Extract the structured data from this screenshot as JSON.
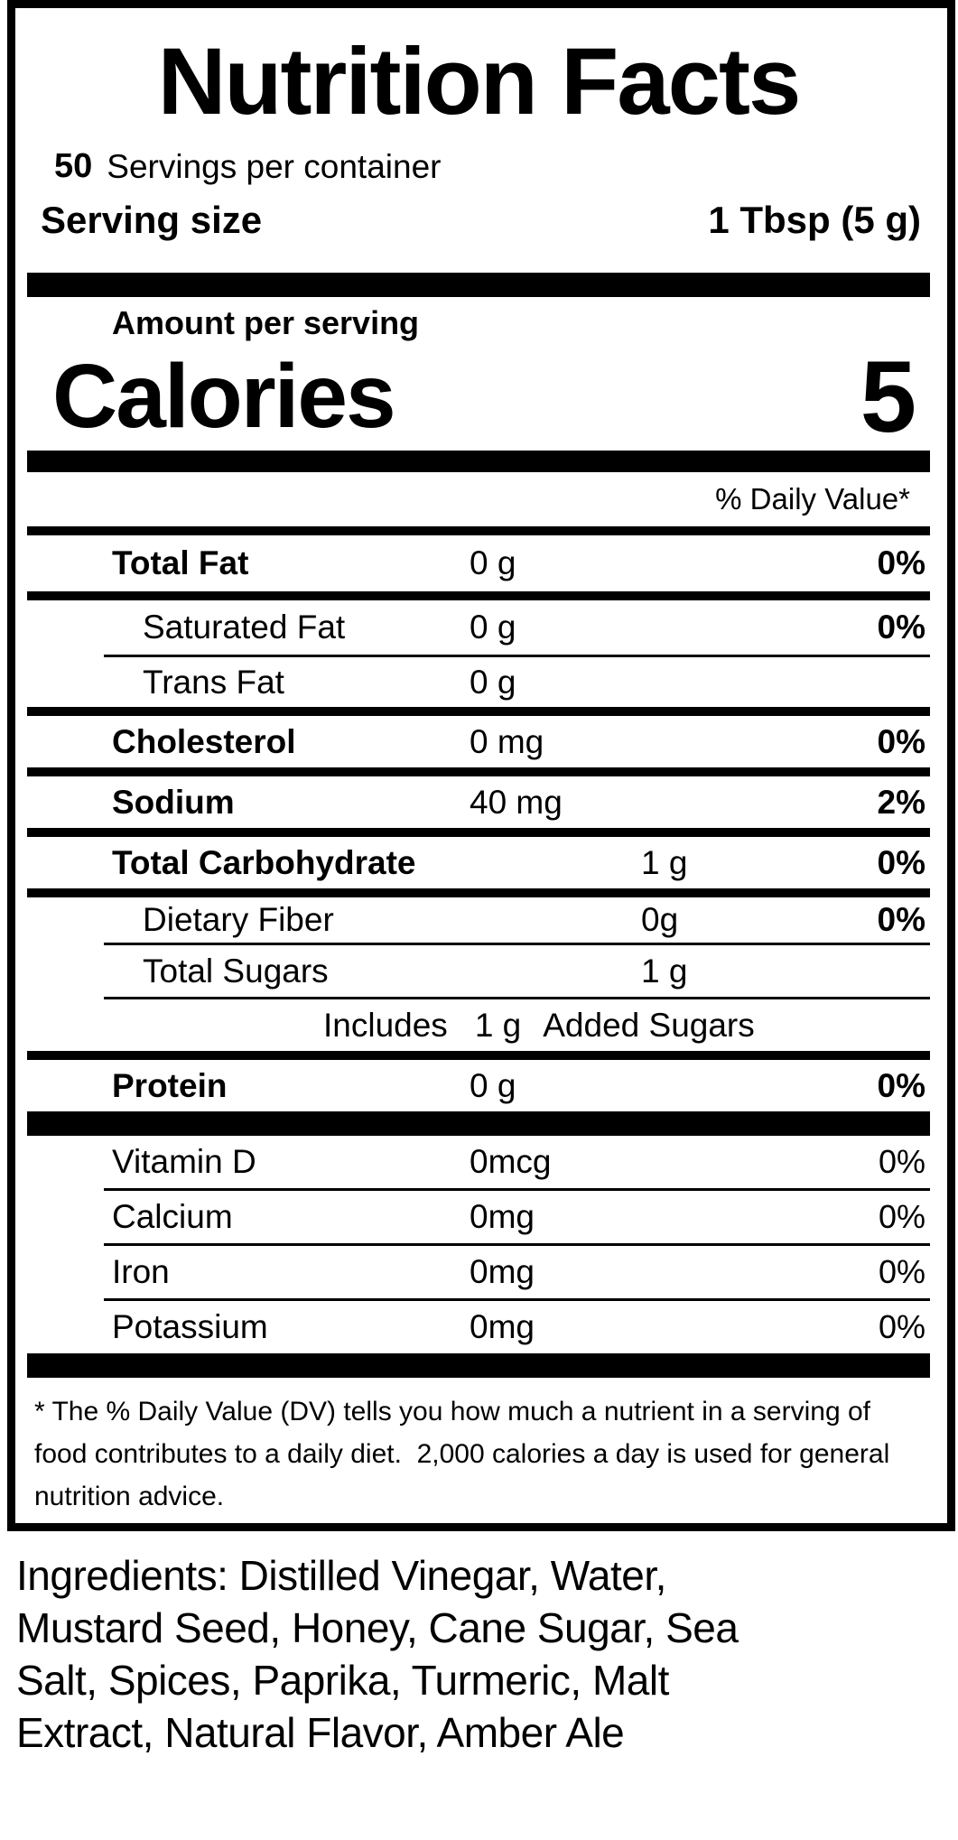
{
  "colors": {
    "text": "#000000",
    "background": "#ffffff"
  },
  "label": {
    "title": "Nutrition Facts",
    "servings": {
      "count": "50",
      "text": "Servings per container"
    },
    "serving_size": {
      "label": "Serving size",
      "value": "1 Tbsp (5 g)"
    },
    "amount_per_serving": "Amount per serving",
    "calories": {
      "label": "Calories",
      "value": "5"
    },
    "daily_value_header": "% Daily Value*",
    "rows": {
      "total_fat": {
        "name": "Total Fat",
        "amount": "0 g",
        "dv": "0%"
      },
      "saturated_fat": {
        "name": "Saturated Fat",
        "amount": "0 g",
        "dv": "0%"
      },
      "trans_fat": {
        "name": "Trans Fat",
        "amount": "0 g",
        "dv": ""
      },
      "cholesterol": {
        "name": "Cholesterol",
        "amount": "0 mg",
        "dv": "0%"
      },
      "sodium": {
        "name": "Sodium",
        "amount": "40 mg",
        "dv": "2%"
      },
      "total_carbohydrate": {
        "name": "Total Carbohydrate",
        "amount": "1 g",
        "dv": "0%"
      },
      "dietary_fiber": {
        "name": "Dietary Fiber",
        "amount": "0g",
        "dv": "0%"
      },
      "total_sugars": {
        "name": "Total Sugars",
        "amount": "1 g",
        "dv": ""
      },
      "added_sugars": {
        "prefix": "Includes",
        "amount": "1 g",
        "suffix": "Added Sugars"
      },
      "protein": {
        "name": "Protein",
        "amount": "0 g",
        "dv": "0%"
      },
      "vitamin_d": {
        "name": "Vitamin D",
        "amount": "0mcg",
        "dv": "0%"
      },
      "calcium": {
        "name": "Calcium",
        "amount": "0mg",
        "dv": "0%"
      },
      "iron": {
        "name": "Iron",
        "amount": "0mg",
        "dv": "0%"
      },
      "potassium": {
        "name": "Potassium",
        "amount": "0mg",
        "dv": "0%"
      }
    },
    "footnote_lines": [
      "* The % Daily Value (DV) tells you how much a nutrient in a serving of",
      "food contributes to a daily diet.  2,000 calories a day is used for general",
      "nutrition advice."
    ]
  },
  "ingredients_lines": [
    "Ingredients: Distilled Vinegar, Water,",
    "Mustard Seed, Honey, Cane Sugar, Sea",
    "Salt, Spices, Paprika, Turmeric, Malt",
    "Extract, Natural Flavor, Amber Ale"
  ]
}
